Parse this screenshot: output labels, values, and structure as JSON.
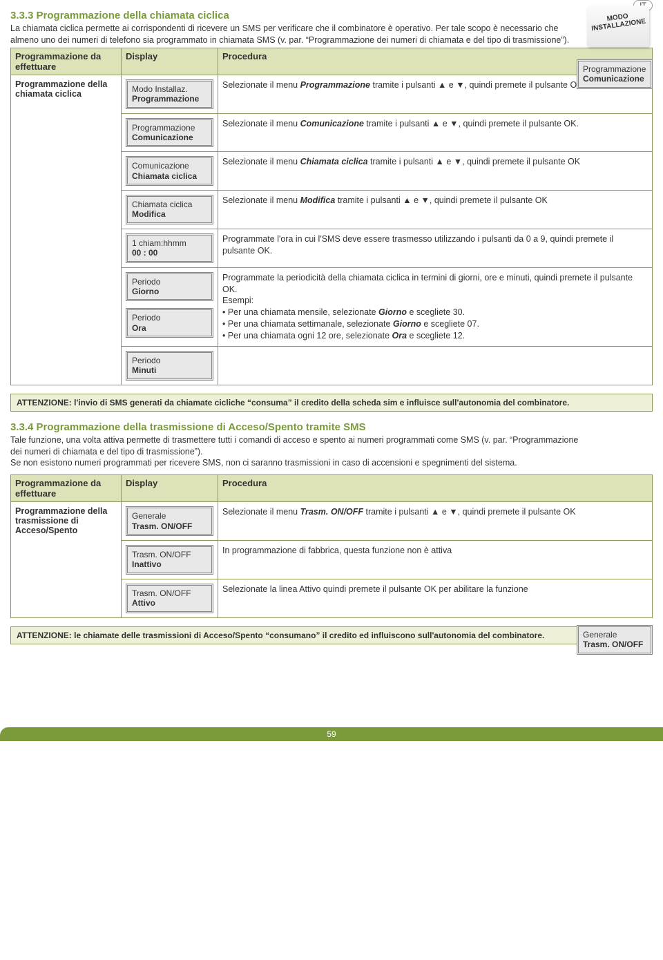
{
  "lang_badge": "IT",
  "modo_badge": "MODO\nINSTALLAZIONE",
  "section1": {
    "title": "3.3.3 Programmazione della chiamata ciclica",
    "intro": "La chiamata ciclica permette ai corrispondenti di ricevere un SMS per verificare che il combinatore è operativo. Per tale scopo è necessario che almeno uno dei numeri di telefono sia programmato in chiamata SMS (v. par. “Programmazione dei numeri di chiamata e del tipo di trasmissione”).",
    "floating_display": {
      "line1": "Programmazione",
      "line2": "Comunicazione"
    },
    "headers": {
      "task": "Programmazione da effettuare",
      "display": "Display",
      "procedure": "Procedura"
    },
    "task_label": "Programmazione della chiamata ciclica",
    "rows": [
      {
        "display": {
          "line1": "Modo Installaz.",
          "line2": "Programmazione"
        },
        "procedure_html": "Selezionate il menu <b><i>Programmazione</i></b> tramite i pulsanti ▲ e ▼, quindi premete il pulsante OK"
      },
      {
        "display": {
          "line1": "Programmazione",
          "line2": "Comunicazione"
        },
        "procedure_html": "Selezionate il menu <b><i>Comunicazione</i></b> tramite i pulsanti ▲ e ▼, quindi premete il pulsante OK."
      },
      {
        "display": {
          "line1": "Comunicazione",
          "line2": "Chiamata ciclica"
        },
        "procedure_html": "Selezionate il menu <b><i>Chiamata ciclica</i></b> tramite i pulsanti ▲ e ▼, quindi premete il pulsante OK"
      },
      {
        "display": {
          "line1": "Chiamata ciclica",
          "line2": "Modifica"
        },
        "procedure_html": "Selezionate il menu <b><i>Modifica</i></b> tramite i pulsanti ▲ e ▼, quindi premete il pulsante OK"
      },
      {
        "display": {
          "line1": "1 chiam:hhmm",
          "line2": "00 : 00"
        },
        "procedure_html": "Programmate l'ora in cui l'SMS deve essere trasmesso utilizzando i pulsanti da 0 a 9, quindi premete il pulsante OK."
      },
      {
        "displays": [
          {
            "line1": "Periodo",
            "line2": "Giorno"
          },
          {
            "line1": "Periodo",
            "line2": "Ora"
          }
        ],
        "procedure_html": "Programmate la periodicità della chiamata ciclica in termini di giorni, ore e minuti, quindi premete il pulsante OK.<br>Esempi:<br>• Per una chiamata mensile, selezionate <b><i>Giorno</i></b> e scegliete 30.<br>• Per una chiamata settimanale, selezionate <b><i>Giorno</i></b> e scegliete 07.<br>• Per una chiamata ogni 12 ore, selezionate <b><i>Ora</i></b> e scegliete 12."
      },
      {
        "display": {
          "line1": "Periodo",
          "line2": "Minuti"
        },
        "procedure_html": ""
      }
    ],
    "warning": "ATTENZIONE: l'invio di SMS generati da chiamate cicliche “consuma” il credito della scheda sim e influisce sull'autonomia del combinatore."
  },
  "section2": {
    "title": "3.3.4 Programmazione della trasmissione di Acceso/Spento tramite SMS",
    "intro": "Tale funzione, una volta attiva permette di trasmettere tutti i comandi di acceso e spento ai numeri programmati come SMS (v. par. “Programmazione dei numeri di chiamata e del tipo di trasmissione”).<br>Se non esistono numeri programmati per ricevere SMS, non ci saranno trasmissioni in caso di accensioni e spegnimenti del sistema.",
    "floating_display": {
      "line1": "Generale",
      "line2": "Trasm. ON/OFF"
    },
    "headers": {
      "task": "Programmazione da effettuare",
      "display": "Display",
      "procedure": "Procedura"
    },
    "task_label": "Programmazione della trasmissione di Acceso/Spento",
    "rows": [
      {
        "display": {
          "line1": "Generale",
          "line2": "Trasm. ON/OFF"
        },
        "procedure_html": "Selezionate il menu <b><i>Trasm. ON/OFF</i></b> tramite i pulsanti ▲ e ▼, quindi premete il pulsante OK"
      },
      {
        "display": {
          "line1": "Trasm. ON/OFF",
          "line2": "Inattivo"
        },
        "procedure_html": "In programmazione di fabbrica, questa funzione non è attiva"
      },
      {
        "display": {
          "line1": "Trasm. ON/OFF",
          "line2": "Attivo"
        },
        "procedure_html": "Selezionate la linea Attivo quindi premete il pulsante OK per abilitare la funzione"
      }
    ],
    "warning": "ATTENZIONE: le chiamate delle trasmissioni di Acceso/Spento “consumano” il credito ed influiscono sull'autonomia del combinatore."
  },
  "page_number": "59"
}
